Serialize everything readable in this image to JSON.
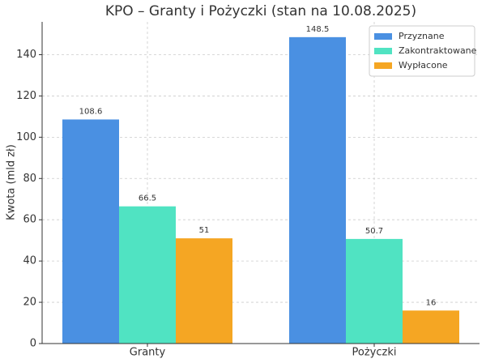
{
  "chart_data": {
    "type": "bar",
    "title": "KPO – Granty i Pożyczki (stan na 10.08.2025)",
    "y_label": "Kwota (mld zł)",
    "categories": [
      "Granty",
      "Pożyczki"
    ],
    "series": [
      {
        "name": "Przyznane",
        "color": "#4a90e2",
        "values": [
          108.6,
          148.5
        ]
      },
      {
        "name": "Zakontraktowane",
        "color": "#50e3c2",
        "values": [
          66.5,
          50.7
        ]
      },
      {
        "name": "Wypłacone",
        "color": "#f5a623",
        "values": [
          51,
          16
        ]
      }
    ],
    "ylim": [
      0,
      155.9
    ],
    "yticks": [
      0,
      20,
      40,
      60,
      80,
      100,
      120,
      140
    ],
    "grid": true,
    "legend": "upper-right"
  }
}
